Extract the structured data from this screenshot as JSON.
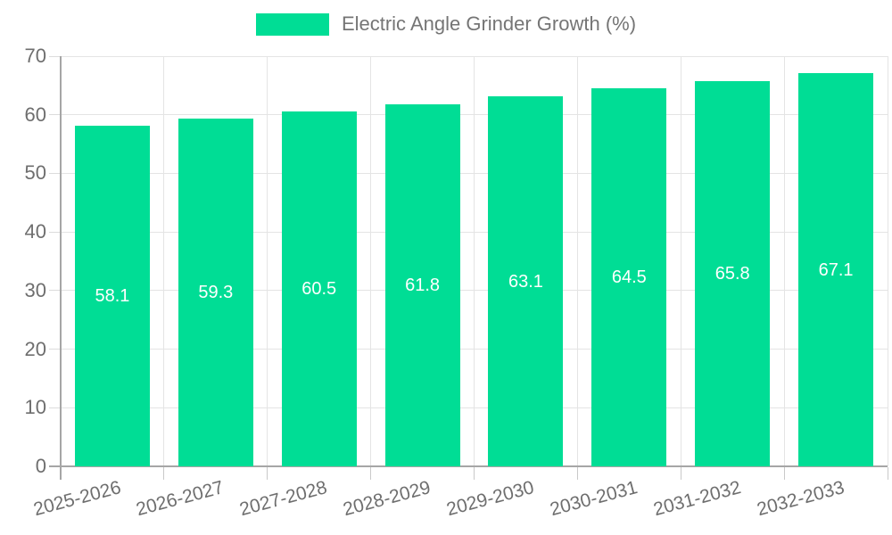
{
  "legend": {
    "label": "Electric Angle Grinder Growth (%)"
  },
  "chart_data": {
    "type": "bar",
    "title": "Electric Angle Grinder Growth (%)",
    "categories": [
      "2025-2026",
      "2026-2027",
      "2027-2028",
      "2028-2029",
      "2029-2030",
      "2030-2031",
      "2031-2032",
      "2032-2033"
    ],
    "values": [
      58.1,
      59.3,
      60.5,
      61.8,
      63.1,
      64.5,
      65.8,
      67.1
    ],
    "value_labels": [
      "58.1",
      "59.3",
      "60.5",
      "61.8",
      "63.1",
      "64.5",
      "65.8",
      "67.1"
    ],
    "xlabel": "",
    "ylabel": "",
    "ylim": [
      0,
      70
    ],
    "yticks": [
      0,
      10,
      20,
      30,
      40,
      50,
      60,
      70
    ],
    "grid": true,
    "legend_position": "top-center",
    "x_label_rotation_deg": -15,
    "colors": {
      "bar": "#00DD95",
      "bar_value_text": "#ffffff",
      "axis_text": "#6e6e6e",
      "legend_text": "#757575",
      "gridline": "#e4e4e4",
      "axis_line": "#a6a6a6",
      "background": "#ffffff"
    }
  }
}
